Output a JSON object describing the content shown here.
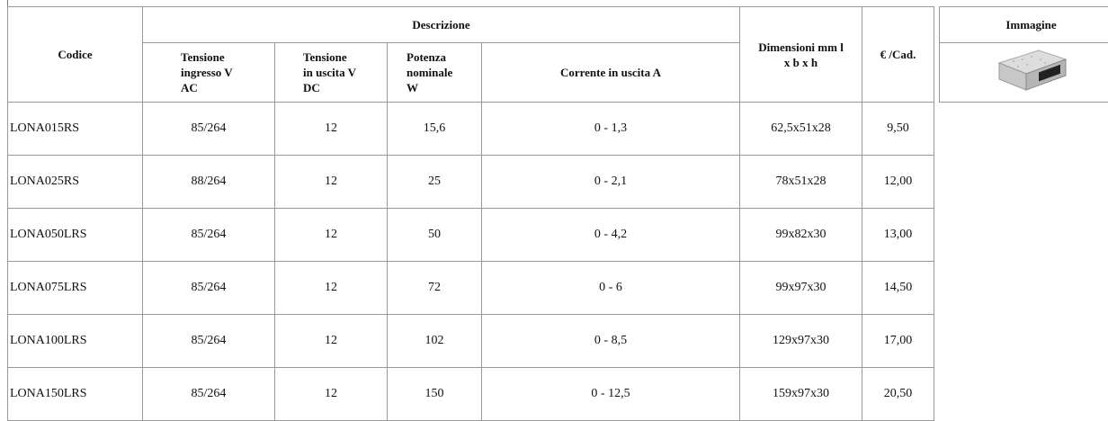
{
  "table": {
    "headers": {
      "code": "Codice",
      "description": "Descrizione",
      "sub": [
        "Tensione ingresso V AC",
        "Tensione in uscita V DC",
        "Potenza nominale W",
        "Corrente in uscita A"
      ],
      "dimensions": "Dimensioni mm l x b x h",
      "price": "€ /Cad.",
      "image": "Immagine"
    },
    "rows": [
      [
        "LONA015RS",
        "85/264",
        "12",
        "15,6",
        "0 - 1,3",
        "62,5x51x28",
        "9,50"
      ],
      [
        "LONA025RS",
        "88/264",
        "12",
        "25",
        "0 - 2,1",
        "78x51x28",
        "12,00"
      ],
      [
        "LONA050LRS",
        "85/264",
        "12",
        "50",
        "0 - 4,2",
        "99x82x30",
        "13,00"
      ],
      [
        "LONA075LRS",
        "85/264",
        "12",
        "72",
        "0 - 6",
        "99x97x30",
        "14,50"
      ],
      [
        "LONA100LRS",
        "85/264",
        "12",
        "102",
        "0 - 8,5",
        "129x97x30",
        "17,00"
      ],
      [
        "LONA150LRS",
        "85/264",
        "12",
        "150",
        "0 - 12,5",
        "159x97x30",
        "20,50"
      ]
    ]
  }
}
